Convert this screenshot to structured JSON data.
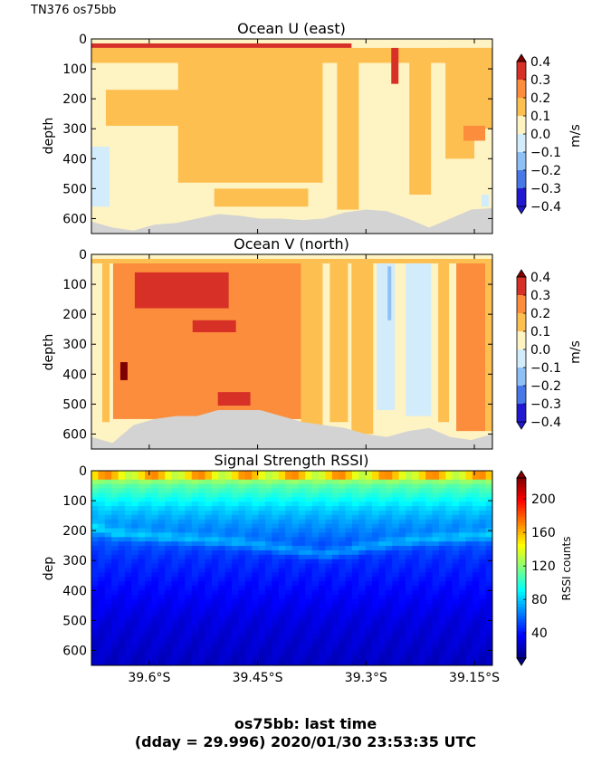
{
  "figure": {
    "corner_label": "TN376 os75bb",
    "footer_line1": "os75bb: last time",
    "footer_line2": "(dday = 29.996) 2020/01/30 23:53:35 UTC"
  },
  "chart_data": [
    {
      "type": "heatmap",
      "title": "Ocean U (east)",
      "xlabel": "",
      "ylabel": "depth",
      "colorbar_label": "m/s",
      "xlim": [
        39.68,
        39.125
      ],
      "ylim": [
        650,
        0
      ],
      "yticks": [
        0,
        100,
        200,
        300,
        400,
        500,
        600
      ],
      "xticks": [
        "39.6°S",
        "39.45°S",
        "39.3°S",
        "39.15°S"
      ],
      "xtick_values": [
        39.6,
        39.45,
        39.3,
        39.15
      ],
      "cbar_ticks": [
        "0.4",
        "0.3",
        "0.2",
        "0.1",
        "0.0",
        "−0.1",
        "−0.2",
        "−0.3",
        "−0.4"
      ],
      "cbar_levels": [
        0.4,
        0.3,
        0.2,
        0.1,
        0.0,
        -0.1,
        -0.2,
        -0.3,
        -0.4
      ],
      "colors": [
        "#7f0000",
        "#d73027",
        "#fc8d3c",
        "#fdbf4f",
        "#fef3c3",
        "#d2ecfb",
        "#8fc0f5",
        "#4878e8",
        "#2019d0"
      ],
      "no_data_color": "#d3d3d3",
      "bottom_depth_m": [
        610,
        630,
        640,
        620,
        615,
        600,
        585,
        590,
        600,
        600,
        605,
        600,
        580,
        570,
        575,
        600,
        630,
        600,
        570,
        565
      ],
      "regions": [
        {
          "x_from": 39.68,
          "x_to": 39.32,
          "depth_from": 15,
          "depth_to": 30,
          "value": 0.3
        },
        {
          "x_from": 39.68,
          "x_to": 39.125,
          "depth_from": 30,
          "depth_to": 80,
          "value": 0.1
        },
        {
          "x_from": 39.66,
          "x_to": 39.52,
          "depth_from": 170,
          "depth_to": 290,
          "value": 0.1
        },
        {
          "x_from": 39.56,
          "x_to": 39.36,
          "depth_from": 80,
          "depth_to": 480,
          "value": 0.1
        },
        {
          "x_from": 39.51,
          "x_to": 39.38,
          "depth_from": 500,
          "depth_to": 560,
          "value": 0.1
        },
        {
          "x_from": 39.34,
          "x_to": 39.31,
          "depth_from": 80,
          "depth_to": 570,
          "value": 0.1
        },
        {
          "x_from": 39.24,
          "x_to": 39.21,
          "depth_from": 80,
          "depth_to": 520,
          "value": 0.1
        },
        {
          "x_from": 39.19,
          "x_to": 39.15,
          "depth_from": 30,
          "depth_to": 400,
          "value": 0.1
        },
        {
          "x_from": 39.15,
          "x_to": 39.125,
          "depth_from": 30,
          "depth_to": 300,
          "value": 0.1
        },
        {
          "x_from": 39.265,
          "x_to": 39.255,
          "depth_from": 30,
          "depth_to": 150,
          "value": 0.3
        },
        {
          "x_from": 39.165,
          "x_to": 39.135,
          "depth_from": 290,
          "depth_to": 340,
          "value": 0.2
        },
        {
          "x_from": 39.68,
          "x_to": 39.655,
          "depth_from": 360,
          "depth_to": 560,
          "value": -0.1
        },
        {
          "x_from": 39.14,
          "x_to": 39.13,
          "depth_from": 520,
          "depth_to": 560,
          "value": -0.1
        }
      ]
    },
    {
      "type": "heatmap",
      "title": "Ocean V (north)",
      "xlabel": "",
      "ylabel": "depth",
      "colorbar_label": "m/s",
      "xlim": [
        39.68,
        39.125
      ],
      "ylim": [
        650,
        0
      ],
      "yticks": [
        0,
        100,
        200,
        300,
        400,
        500,
        600
      ],
      "xticks": [
        "39.6°S",
        "39.45°S",
        "39.3°S",
        "39.15°S"
      ],
      "xtick_values": [
        39.6,
        39.45,
        39.3,
        39.15
      ],
      "cbar_ticks": [
        "0.4",
        "0.3",
        "0.2",
        "0.1",
        "0.0",
        "−0.1",
        "−0.2",
        "−0.3",
        "−0.4"
      ],
      "cbar_levels": [
        0.4,
        0.3,
        0.2,
        0.1,
        0.0,
        -0.1,
        -0.2,
        -0.3,
        -0.4
      ],
      "colors": [
        "#7f0000",
        "#d73027",
        "#fc8d3c",
        "#fdbf4f",
        "#fef3c3",
        "#d2ecfb",
        "#8fc0f5",
        "#4878e8",
        "#2019d0"
      ],
      "no_data_color": "#d3d3d3",
      "bottom_depth_m": [
        610,
        630,
        570,
        550,
        540,
        540,
        520,
        520,
        520,
        540,
        560,
        570,
        580,
        600,
        610,
        590,
        580,
        610,
        620,
        600
      ],
      "regions": [
        {
          "x_from": 39.68,
          "x_to": 39.125,
          "depth_from": 15,
          "depth_to": 30,
          "value": 0.1
        },
        {
          "x_from": 39.665,
          "x_to": 39.655,
          "depth_from": 30,
          "depth_to": 560,
          "value": 0.1
        },
        {
          "x_from": 39.65,
          "x_to": 39.39,
          "depth_from": 30,
          "depth_to": 550,
          "value": 0.2
        },
        {
          "x_from": 39.62,
          "x_to": 39.49,
          "depth_from": 60,
          "depth_to": 180,
          "value": 0.3
        },
        {
          "x_from": 39.54,
          "x_to": 39.48,
          "depth_from": 220,
          "depth_to": 260,
          "value": 0.3
        },
        {
          "x_from": 39.505,
          "x_to": 39.46,
          "depth_from": 460,
          "depth_to": 505,
          "value": 0.3
        },
        {
          "x_from": 39.64,
          "x_to": 39.63,
          "depth_from": 360,
          "depth_to": 420,
          "value": 0.4
        },
        {
          "x_from": 39.39,
          "x_to": 39.36,
          "depth_from": 30,
          "depth_to": 580,
          "value": 0.1
        },
        {
          "x_from": 39.35,
          "x_to": 39.325,
          "depth_from": 30,
          "depth_to": 560,
          "value": 0.1
        },
        {
          "x_from": 39.32,
          "x_to": 39.29,
          "depth_from": 30,
          "depth_to": 600,
          "value": 0.1
        },
        {
          "x_from": 39.285,
          "x_to": 39.26,
          "depth_from": 30,
          "depth_to": 520,
          "value": -0.1
        },
        {
          "x_from": 39.27,
          "x_to": 39.265,
          "depth_from": 40,
          "depth_to": 220,
          "value": -0.2
        },
        {
          "x_from": 39.245,
          "x_to": 39.21,
          "depth_from": 30,
          "depth_to": 540,
          "value": -0.1
        },
        {
          "x_from": 39.2,
          "x_to": 39.185,
          "depth_from": 30,
          "depth_to": 560,
          "value": 0.1
        },
        {
          "x_from": 39.175,
          "x_to": 39.135,
          "depth_from": 30,
          "depth_to": 590,
          "value": 0.2
        },
        {
          "x_from": 39.135,
          "x_to": 39.125,
          "depth_from": 30,
          "depth_to": 590,
          "value": 0.1
        }
      ]
    },
    {
      "type": "heatmap",
      "title": "Signal Strength RSSI)",
      "xlabel": "",
      "ylabel": "dep",
      "colorbar_label": "RSSI counts",
      "xlim": [
        39.68,
        39.125
      ],
      "ylim": [
        650,
        0
      ],
      "yticks": [
        0,
        100,
        200,
        300,
        400,
        500,
        600
      ],
      "xticks": [
        "39.6°S",
        "39.45°S",
        "39.3°S",
        "39.15°S"
      ],
      "xtick_values": [
        39.6,
        39.45,
        39.3,
        39.15
      ],
      "clim": [
        10,
        225
      ],
      "cbar_ticks": [
        "200",
        "160",
        "120",
        "80",
        "40"
      ],
      "cbar_tick_values": [
        200,
        160,
        120,
        80,
        40
      ],
      "colormap": "jet",
      "depth_profile": {
        "depth": [
          15,
          30,
          50,
          90,
          130,
          170,
          210,
          240,
          270,
          300,
          350,
          420,
          500,
          650
        ],
        "rssi": [
          140,
          125,
          110,
          95,
          80,
          70,
          62,
          55,
          50,
          46,
          42,
          36,
          30,
          24
        ]
      },
      "band_depth_m": [
        190,
        210,
        215,
        220,
        225,
        230,
        235,
        240,
        250,
        260,
        270,
        280,
        270,
        255,
        245,
        235,
        230,
        225,
        220,
        215
      ]
    }
  ]
}
